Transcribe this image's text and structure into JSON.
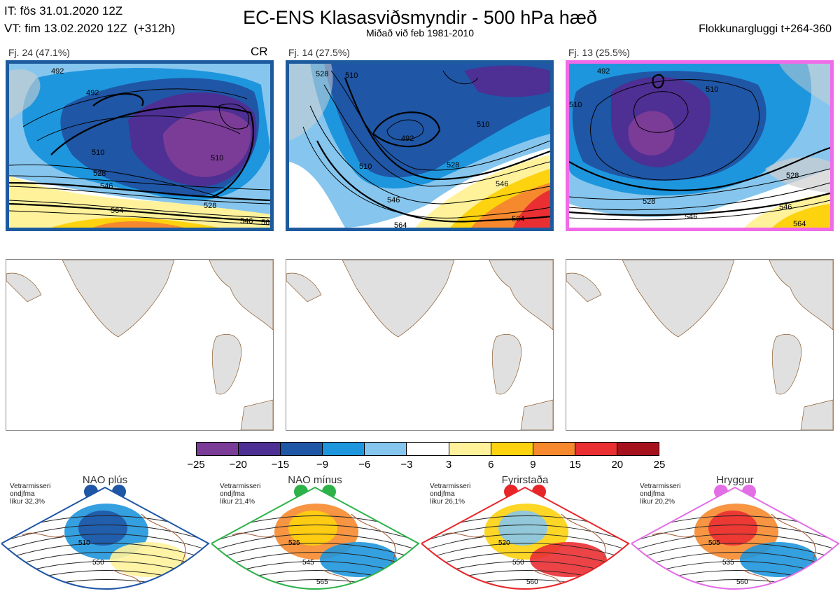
{
  "header": {
    "it_line": "IT: fös 31.01.2020 12Z",
    "vt_line": "VT: fim 13.02.2020 12Z  (+312h)",
    "title": "EC-ENS Klasasviðsmyndir - 500 hPa hæð",
    "subtitle": "Miðað við feb 1981-2010",
    "window": "Flokkunargluggi t+264-360"
  },
  "panels": [
    {
      "label": "Fj. 24 (47.1%)",
      "tag": "CR",
      "frame_color": "#1d5a9e",
      "contours": [
        "492",
        "492",
        "510",
        "510",
        "528",
        "546",
        "564",
        "546",
        "528",
        "564"
      ]
    },
    {
      "label": "Fj. 14 (27.5%)",
      "tag": "",
      "frame_color": "#1d5a9e",
      "contours": [
        "528",
        "510",
        "492",
        "510",
        "528",
        "546",
        "564",
        "546",
        "564",
        "510"
      ]
    },
    {
      "label": "Fj. 13 (25.5%)",
      "tag": "",
      "frame_color": "#f06be8",
      "contours": [
        "492",
        "510",
        "528",
        "546",
        "564",
        "510",
        "546",
        "528"
      ]
    }
  ],
  "colorbar": {
    "ticks": [
      "−25",
      "−20",
      "−15",
      "−9",
      "−6",
      "−3",
      "3",
      "6",
      "9",
      "15",
      "20",
      "25"
    ],
    "colors": [
      "#7b3c98",
      "#4e2f93",
      "#1f56a6",
      "#1e96dd",
      "#86c6ee",
      "#ffffff",
      "#fff29b",
      "#fdd20e",
      "#f6892d",
      "#ea2f33",
      "#a5121d"
    ]
  },
  "regimes": [
    {
      "title": "NAO plús",
      "note": [
        "Vetrarmisseri",
        "ondjfma",
        "líkur 32,3%"
      ],
      "color": "#1f56a6",
      "labels": [
        "510",
        "550"
      ]
    },
    {
      "title": "NAO mínus",
      "note": [
        "Vetrarmisseri",
        "ondjfma",
        "líkur 21,4%"
      ],
      "color": "#2db24a",
      "labels": [
        "525",
        "545",
        "565"
      ]
    },
    {
      "title": "Fyrirstaða",
      "note": [
        "Vetrarmisseri",
        "ondjfma",
        "líkur 26,1%"
      ],
      "color": "#e8262a",
      "labels": [
        "520",
        "550",
        "560"
      ]
    },
    {
      "title": "Hryggur",
      "note": [
        "Vetrarmisseri",
        "ondjfma",
        "líkur 20,2%"
      ],
      "color": "#e36ee6",
      "labels": [
        "505",
        "535",
        "560"
      ]
    }
  ]
}
